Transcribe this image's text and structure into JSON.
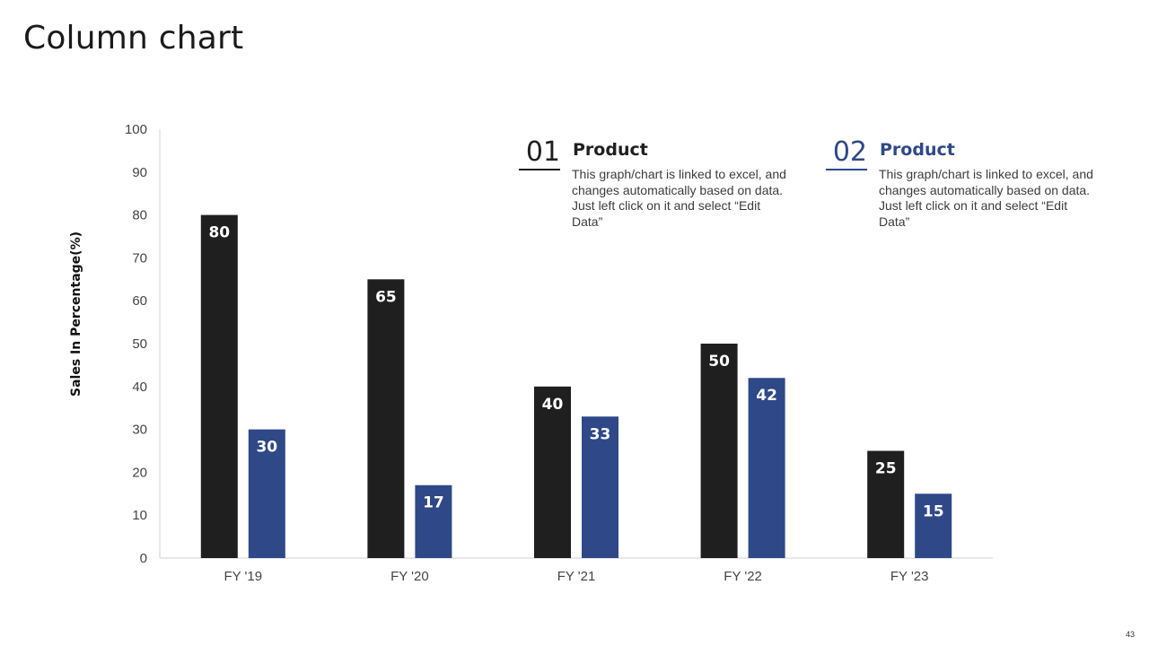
{
  "slide": {
    "title": "Column chart",
    "page_number": "43"
  },
  "legend": [
    {
      "number": "01",
      "heading": "Product",
      "description": "This graph/chart is linked to excel, and changes automatically based on data. Just left click on it and select “Edit Data”",
      "color": "#1f1f1f"
    },
    {
      "number": "02",
      "heading": "Product",
      "description": "This graph/chart is linked to excel, and changes automatically based on data. Just left click on it and select “Edit Data”",
      "color": "#2e4888"
    }
  ],
  "chart_data": {
    "type": "bar",
    "title": "",
    "xlabel": "",
    "ylabel": "Sales In Percentage(%)",
    "ylim": [
      0,
      100
    ],
    "yticks": [
      0,
      10,
      20,
      30,
      40,
      50,
      60,
      70,
      80,
      90,
      100
    ],
    "grid": false,
    "categories": [
      "FY '19",
      "FY '20",
      "FY '21",
      "FY '22",
      "FY '23"
    ],
    "series": [
      {
        "name": "Product 01",
        "values": [
          80,
          65,
          40,
          50,
          25
        ],
        "color": "#1f1f1f"
      },
      {
        "name": "Product 02",
        "values": [
          30,
          17,
          33,
          42,
          15
        ],
        "color": "#2e4888"
      }
    ]
  }
}
